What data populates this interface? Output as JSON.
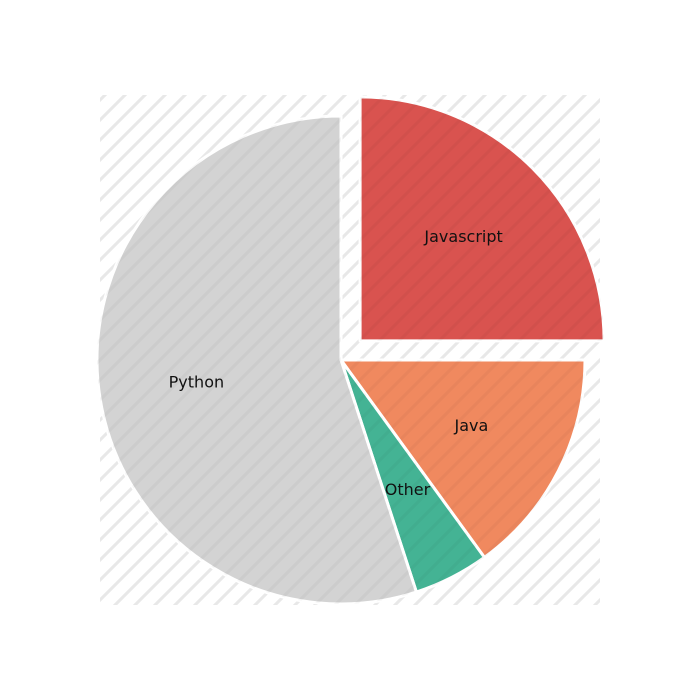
{
  "chart_data": {
    "type": "pie",
    "title": "",
    "slices": [
      {
        "label": "Javascript",
        "value": 25,
        "color": "#d9534f",
        "exploded": true
      },
      {
        "label": "Java",
        "value": 15,
        "color": "#f0895f",
        "exploded": false
      },
      {
        "label": "Other",
        "value": 5,
        "color": "#44b394",
        "exploded": false
      },
      {
        "label": "Python",
        "value": 55,
        "color": "#d3d3d3",
        "exploded": false
      }
    ],
    "start_angle_deg": 90,
    "direction": "clockwise",
    "background_pattern": "diagonal-stripes",
    "background_pattern_color": "#e8e8e8",
    "slice_edge_color": "#ffffff"
  }
}
